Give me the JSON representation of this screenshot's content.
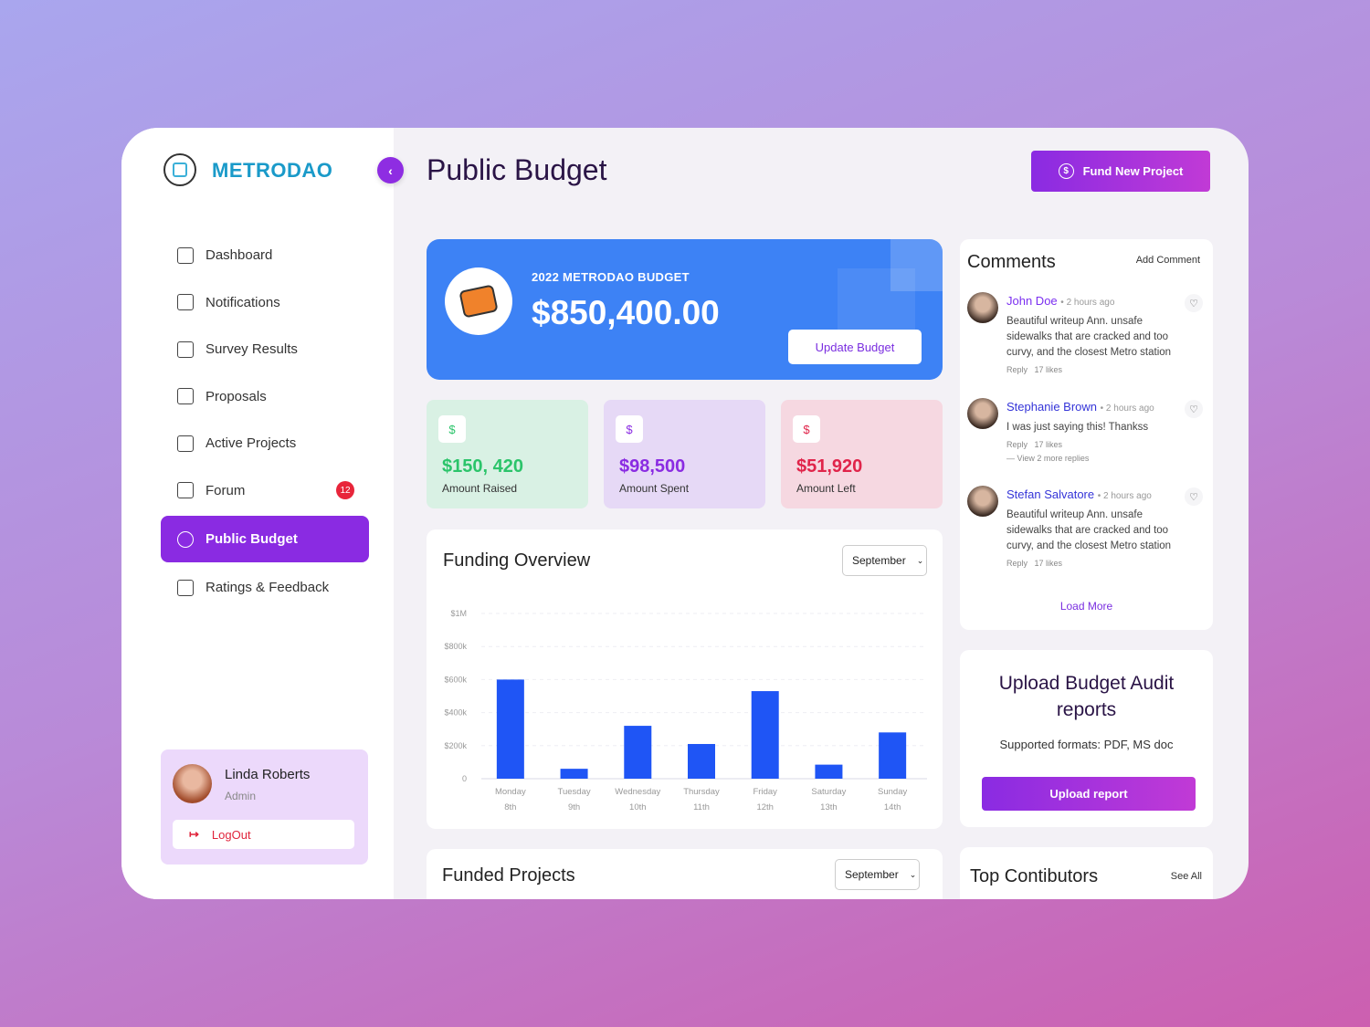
{
  "brand": {
    "name": "METRODAO"
  },
  "sidebar": {
    "items": [
      {
        "label": "Dashboard",
        "icon": "grid-icon"
      },
      {
        "label": "Notifications",
        "icon": "bell-icon"
      },
      {
        "label": "Survey Results",
        "icon": "bar-chart-icon"
      },
      {
        "label": "Proposals",
        "icon": "document-icon"
      },
      {
        "label": "Active Projects",
        "icon": "project-icon"
      },
      {
        "label": "Forum",
        "icon": "chat-icon",
        "badge": "12"
      },
      {
        "label": "Public Budget",
        "icon": "dollar-circle-icon",
        "active": true
      },
      {
        "label": "Ratings & Feedback",
        "icon": "feedback-icon"
      }
    ],
    "user": {
      "name": "Linda Roberts",
      "role": "Admin",
      "logout": "LogOut"
    }
  },
  "header": {
    "title": "Public Budget",
    "fund_button": "Fund New Project"
  },
  "budget": {
    "label": "2022 METRODAO BUDGET",
    "value": "$850,400.00",
    "update_button": "Update Budget"
  },
  "stats": [
    {
      "value": "$150, 420",
      "label": "Amount Raised",
      "color": "#2bc46a",
      "bg": "#d9f1e4"
    },
    {
      "value": "$98,500",
      "label": "Amount Spent",
      "color": "#8a2be2",
      "bg": "#e6d9f6"
    },
    {
      "value": "$51,920",
      "label": "Amount Left",
      "color": "#e0244a",
      "bg": "#f6d8e1"
    }
  ],
  "funding": {
    "title": "Funding Overview",
    "select": "September"
  },
  "chart_data": {
    "type": "bar",
    "categories": [
      "Monday 8th",
      "Tuesday 9th",
      "Wednesday 10th",
      "Thursday 11th",
      "Friday 12th",
      "Saturday 13th",
      "Sunday 14th"
    ],
    "day_labels": [
      [
        "Monday",
        "8th"
      ],
      [
        "Tuesday",
        "9th"
      ],
      [
        "Wednesday",
        "10th"
      ],
      [
        "Thursday",
        "11th"
      ],
      [
        "Friday",
        "12th"
      ],
      [
        "Saturday",
        "13th"
      ],
      [
        "Sunday",
        "14th"
      ]
    ],
    "values": [
      600000,
      60000,
      320000,
      210000,
      530000,
      85000,
      280000
    ],
    "ylim": [
      0,
      1000000
    ],
    "yticks": [
      0,
      200000,
      400000,
      600000,
      800000,
      1000000
    ],
    "ytick_labels": [
      "0",
      "$200k",
      "$400k",
      "$600k",
      "$800k",
      "$1M"
    ],
    "grid": true,
    "color": "#1f55f5"
  },
  "funded": {
    "title": "Funded Projects",
    "select": "September"
  },
  "comments": {
    "title": "Comments",
    "add": "Add Comment",
    "load_more": "Load More",
    "items": [
      {
        "name": "John Doe",
        "time": "2 hours ago",
        "text": "Beautiful writeup Ann.  unsafe sidewalks that are cracked and too curvy, and the closest Metro station",
        "reply": "Reply",
        "likes": "17 likes"
      },
      {
        "name": "Stephanie Brown",
        "time": "2 hours ago",
        "text": "I was just saying this! Thankss",
        "reply": "Reply",
        "likes": "17 likes",
        "more": "View 2 more replies"
      },
      {
        "name": "Stefan Salvatore",
        "time": "2 hours ago",
        "text": "Beautiful writeup Ann.  unsafe sidewalks that are cracked and too curvy, and the closest Metro station",
        "reply": "Reply",
        "likes": "17 likes"
      }
    ]
  },
  "upload": {
    "title": "Upload Budget Audit reports",
    "formats": "Supported formats: PDF, MS doc",
    "button": "Upload report"
  },
  "contributors": {
    "title": "Top Contibutors",
    "see_all": "See All"
  }
}
